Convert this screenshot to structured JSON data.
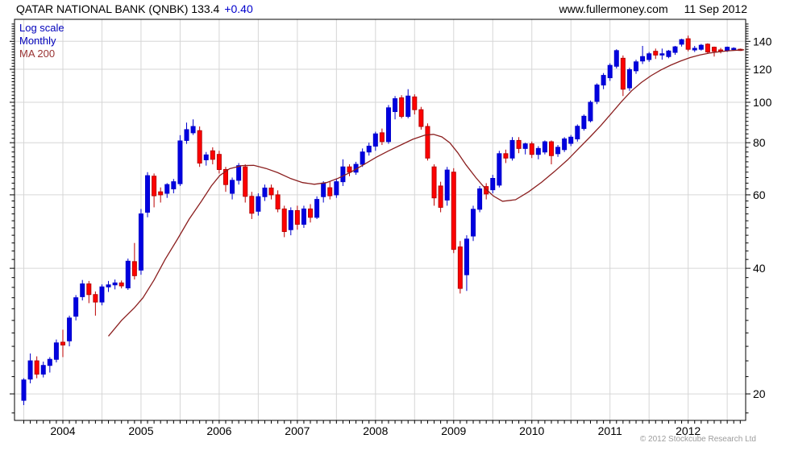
{
  "header": {
    "title": "QATAR NATIONAL BANK (QNBK) 133.4",
    "change": "+0.40",
    "site": "www.fullermoney.com",
    "date": "11 Sep 2012"
  },
  "legend": {
    "scale": "Log scale",
    "interval": "Monthly",
    "ma": "MA 200"
  },
  "footer": {
    "copyright": "© 2012 Stockcube Research Ltd"
  },
  "colors": {
    "up": "#0000e0",
    "up_edge": "#0000cc",
    "down": "#ff0000",
    "down_edge": "#bb0000",
    "ma": "#8b1f1f",
    "grid": "#d6d6d6",
    "axis": "#000000",
    "change_text": "#0000cc",
    "legend_blue": "#0000bb",
    "legend_red": "#993333",
    "copyright_gray": "#9c9c9c"
  },
  "chart_data": {
    "type": "candlestick",
    "interval": "Monthly",
    "scale": "log",
    "title": "QATAR NATIONAL BANK (QNBK)",
    "last_price": 133.4,
    "last_change": 0.4,
    "overlay": "MA 200",
    "y_ticks": [
      20,
      40,
      60,
      80,
      100,
      120,
      140
    ],
    "y_minor_tick_step": 2,
    "ylim": [
      17.3,
      155
    ],
    "x_years": [
      "2004",
      "2005",
      "2006",
      "2007",
      "2008",
      "2009",
      "2010",
      "2011",
      "2012"
    ],
    "start_month": "2003-07",
    "months": [
      [
        "2003-07",
        19.3,
        21.8,
        18.8,
        21.6
      ],
      [
        "2003-08",
        21.7,
        25.0,
        21.2,
        24.0
      ],
      [
        "2003-09",
        24.0,
        24.6,
        21.8,
        22.3
      ],
      [
        "2003-10",
        22.3,
        23.9,
        21.9,
        23.4
      ],
      [
        "2003-11",
        23.4,
        24.5,
        22.5,
        24.2
      ],
      [
        "2003-12",
        24.2,
        27.0,
        23.8,
        26.5
      ],
      [
        "2004-01",
        26.6,
        28.5,
        24.5,
        26.2
      ],
      [
        "2004-02",
        26.8,
        30.8,
        26.0,
        30.4
      ],
      [
        "2004-03",
        30.7,
        34.5,
        30.0,
        34.0
      ],
      [
        "2004-04",
        34.2,
        37.5,
        33.5,
        36.7
      ],
      [
        "2004-05",
        36.7,
        37.3,
        33.0,
        34.6
      ],
      [
        "2004-06",
        34.6,
        35.2,
        30.8,
        33.2
      ],
      [
        "2004-07",
        33.2,
        36.6,
        32.6,
        36.1
      ],
      [
        "2004-08",
        36.1,
        37.3,
        35.1,
        36.5
      ],
      [
        "2004-09",
        36.5,
        37.6,
        35.6,
        36.9
      ],
      [
        "2004-10",
        36.9,
        37.4,
        35.8,
        36.3
      ],
      [
        "2004-11",
        35.9,
        42.2,
        35.5,
        41.6
      ],
      [
        "2004-12",
        41.5,
        46.0,
        37.6,
        38.4
      ],
      [
        "2005-01",
        39.6,
        55.5,
        38.6,
        54.0
      ],
      [
        "2005-02",
        54.5,
        68.0,
        53.0,
        66.7
      ],
      [
        "2005-03",
        66.5,
        67.5,
        56.0,
        59.7
      ],
      [
        "2005-04",
        61.0,
        62.5,
        57.5,
        60.0
      ],
      [
        "2005-05",
        60.5,
        64.0,
        59.0,
        63.5
      ],
      [
        "2005-06",
        62.0,
        65.5,
        60.5,
        64.5
      ],
      [
        "2005-07",
        63.8,
        83.4,
        63.0,
        80.8
      ],
      [
        "2005-08",
        81.0,
        89.4,
        79.5,
        86.0
      ],
      [
        "2005-09",
        84.5,
        91.0,
        83.5,
        87.5
      ],
      [
        "2005-10",
        85.5,
        87.5,
        70.0,
        71.5
      ],
      [
        "2005-11",
        72.8,
        76.0,
        70.5,
        74.8
      ],
      [
        "2005-12",
        76.5,
        78.0,
        71.0,
        73.0
      ],
      [
        "2006-01",
        75.0,
        76.5,
        67.5,
        69.0
      ],
      [
        "2006-02",
        69.0,
        70.0,
        61.0,
        63.5
      ],
      [
        "2006-03",
        60.5,
        66.0,
        58.5,
        65.0
      ],
      [
        "2006-04",
        65.0,
        71.5,
        63.5,
        70.5
      ],
      [
        "2006-05",
        70.0,
        71.0,
        57.5,
        59.5
      ],
      [
        "2006-06",
        59.5,
        61.0,
        52.5,
        54.2
      ],
      [
        "2006-07",
        54.8,
        60.5,
        53.5,
        59.4
      ],
      [
        "2006-08",
        59.4,
        63.5,
        58.0,
        62.3
      ],
      [
        "2006-09",
        62.3,
        63.5,
        58.5,
        60.0
      ],
      [
        "2006-10",
        60.0,
        61.5,
        54.5,
        55.5
      ],
      [
        "2006-11",
        55.5,
        56.5,
        47.5,
        49.0
      ],
      [
        "2006-12",
        49.5,
        56.0,
        48.0,
        55.0
      ],
      [
        "2007-01",
        55.0,
        56.5,
        49.5,
        51.0
      ],
      [
        "2007-02",
        51.0,
        56.5,
        50.0,
        55.5
      ],
      [
        "2007-03",
        55.5,
        57.0,
        51.5,
        53.0
      ],
      [
        "2007-04",
        53.0,
        59.5,
        52.5,
        58.5
      ],
      [
        "2007-05",
        59.4,
        64.7,
        57.5,
        64.0
      ],
      [
        "2007-06",
        62.4,
        64.5,
        58.5,
        59.7
      ],
      [
        "2007-07",
        60.0,
        65.5,
        59.0,
        64.5
      ],
      [
        "2007-08",
        64.5,
        73.0,
        63.0,
        70.0
      ],
      [
        "2007-09",
        70.0,
        71.0,
        66.5,
        68.0
      ],
      [
        "2007-10",
        68.0,
        72.0,
        67.0,
        71.0
      ],
      [
        "2007-11",
        71.0,
        77.5,
        70.0,
        76.0
      ],
      [
        "2007-12",
        76.0,
        80.0,
        74.5,
        78.5
      ],
      [
        "2008-01",
        78.5,
        85.0,
        76.5,
        84.0
      ],
      [
        "2008-02",
        84.5,
        86.5,
        79.0,
        80.5
      ],
      [
        "2008-03",
        80.5,
        98.5,
        79.5,
        97.0
      ],
      [
        "2008-04",
        95.0,
        103.5,
        91.0,
        102.0
      ],
      [
        "2008-05",
        102.5,
        104.0,
        91.5,
        92.5
      ],
      [
        "2008-06",
        92.5,
        107.5,
        91.5,
        103.5
      ],
      [
        "2008-07",
        103.0,
        104.5,
        93.5,
        96.0
      ],
      [
        "2008-08",
        96.0,
        97.5,
        86.0,
        87.5
      ],
      [
        "2008-09",
        87.5,
        89.0,
        72.5,
        73.5
      ],
      [
        "2008-10",
        70.0,
        71.0,
        56.5,
        59.0
      ],
      [
        "2008-11",
        63.0,
        64.5,
        54.5,
        56.0
      ],
      [
        "2008-12",
        58.3,
        70.0,
        56.5,
        68.8
      ],
      [
        "2009-01",
        68.0,
        69.5,
        43.5,
        44.4
      ],
      [
        "2009-02",
        45.0,
        46.5,
        34.8,
        35.8
      ],
      [
        "2009-03",
        38.6,
        48.0,
        35.3,
        47.0
      ],
      [
        "2009-04",
        47.8,
        56.5,
        46.5,
        55.4
      ],
      [
        "2009-05",
        55.4,
        63.0,
        54.5,
        62.0
      ],
      [
        "2009-06",
        62.8,
        64.0,
        58.5,
        60.3
      ],
      [
        "2009-07",
        61.7,
        67.0,
        60.5,
        65.7
      ],
      [
        "2009-08",
        63.3,
        76.5,
        62.5,
        75.3
      ],
      [
        "2009-09",
        75.3,
        77.0,
        71.5,
        73.5
      ],
      [
        "2009-10",
        73.5,
        82.5,
        72.5,
        81.0
      ],
      [
        "2009-11",
        81.0,
        82.5,
        75.5,
        77.5
      ],
      [
        "2009-12",
        77.5,
        80.0,
        75.0,
        79.5
      ],
      [
        "2010-01",
        79.5,
        80.5,
        73.5,
        75.0
      ],
      [
        "2010-02",
        75.0,
        78.5,
        73.0,
        77.5
      ],
      [
        "2010-03",
        76.0,
        81.0,
        75.0,
        80.4
      ],
      [
        "2010-04",
        80.4,
        81.0,
        71.0,
        74.5
      ],
      [
        "2010-05",
        75.3,
        79.0,
        74.0,
        78.0
      ],
      [
        "2010-06",
        77.0,
        82.5,
        76.0,
        81.7
      ],
      [
        "2010-07",
        79.7,
        83.5,
        78.5,
        82.5
      ],
      [
        "2010-08",
        81.7,
        88.5,
        80.5,
        87.6
      ],
      [
        "2010-09",
        86.5,
        93.5,
        85.5,
        92.6
      ],
      [
        "2010-10",
        90.3,
        101.0,
        89.5,
        100.0
      ],
      [
        "2010-11",
        100.5,
        111.0,
        99.0,
        110.0
      ],
      [
        "2010-12",
        110.0,
        117.5,
        107.5,
        116.0
      ],
      [
        "2011-01",
        114.5,
        124.0,
        112.5,
        122.6
      ],
      [
        "2011-02",
        122.0,
        134.0,
        120.5,
        133.0
      ],
      [
        "2011-03",
        127.5,
        129.5,
        103.5,
        107.5
      ],
      [
        "2011-04",
        108.3,
        121.0,
        106.5,
        119.7
      ],
      [
        "2011-05",
        119.0,
        126.5,
        117.0,
        125.0
      ],
      [
        "2011-06",
        125.6,
        136.5,
        123.5,
        128.7
      ],
      [
        "2011-07",
        126.6,
        132.0,
        125.0,
        130.7
      ],
      [
        "2011-08",
        132.5,
        134.5,
        127.0,
        129.8
      ],
      [
        "2011-09",
        129.8,
        134.5,
        126.5,
        130.7
      ],
      [
        "2011-10",
        128.7,
        133.5,
        127.5,
        132.7
      ],
      [
        "2011-11",
        131.7,
        136.5,
        130.0,
        135.8
      ],
      [
        "2011-12",
        137.8,
        142.0,
        136.0,
        141.3
      ],
      [
        "2012-01",
        142.0,
        144.5,
        132.5,
        134.0
      ],
      [
        "2012-02",
        133.5,
        136.5,
        132.0,
        134.7
      ],
      [
        "2012-03",
        134.0,
        138.0,
        133.0,
        137.0
      ],
      [
        "2012-04",
        137.8,
        138.5,
        131.0,
        132.0
      ],
      [
        "2012-05",
        135.5,
        136.0,
        128.7,
        132.5
      ],
      [
        "2012-06",
        133.5,
        135.0,
        131.0,
        133.0
      ],
      [
        "2012-07",
        133.0,
        136.0,
        132.0,
        135.5
      ],
      [
        "2012-08",
        134.5,
        135.5,
        133.0,
        134.7
      ],
      [
        "2012-09",
        134.0,
        134.5,
        132.8,
        133.4
      ]
    ],
    "ma200": [
      [
        13,
        27.5
      ],
      [
        15,
        30
      ],
      [
        17,
        32.2
      ],
      [
        18.3,
        34
      ],
      [
        20,
        37.5
      ],
      [
        21.7,
        42
      ],
      [
        23.6,
        47
      ],
      [
        25.4,
        52.5
      ],
      [
        27.3,
        58
      ],
      [
        28.8,
        63
      ],
      [
        30.1,
        66.8
      ],
      [
        31.6,
        69.3
      ],
      [
        33.5,
        70.5
      ],
      [
        35.3,
        70.6
      ],
      [
        37.2,
        69.4
      ],
      [
        39,
        67.8
      ],
      [
        41,
        65.6
      ],
      [
        42.8,
        64.2
      ],
      [
        44.6,
        63.6
      ],
      [
        46.5,
        64.2
      ],
      [
        48.3,
        65.8
      ],
      [
        50.2,
        68
      ],
      [
        52,
        70.6
      ],
      [
        54.1,
        73.8
      ],
      [
        56,
        76.5
      ],
      [
        57.9,
        79
      ],
      [
        59.7,
        81.5
      ],
      [
        61.6,
        83.4
      ],
      [
        62.9,
        83.8
      ],
      [
        64.2,
        82.6
      ],
      [
        65.4,
        80
      ],
      [
        66.6,
        75.8
      ],
      [
        67.9,
        70.8
      ],
      [
        69.4,
        66
      ],
      [
        70.9,
        62
      ],
      [
        72.1,
        59.6
      ],
      [
        73.5,
        57.9
      ],
      [
        75.5,
        58.4
      ],
      [
        77.5,
        61
      ],
      [
        79.5,
        64.3
      ],
      [
        81.5,
        68.3
      ],
      [
        83.5,
        72.8
      ],
      [
        85.2,
        77.5
      ],
      [
        87,
        82.8
      ],
      [
        88.6,
        88
      ],
      [
        90.2,
        94
      ],
      [
        91.8,
        100.5
      ],
      [
        93.3,
        106.5
      ],
      [
        94.8,
        111.5
      ],
      [
        96.3,
        115.8
      ],
      [
        97.8,
        119.5
      ],
      [
        99.3,
        122.7
      ],
      [
        100.8,
        125.5
      ],
      [
        102.3,
        128
      ],
      [
        103.8,
        129.9
      ],
      [
        105.3,
        131.2
      ],
      [
        106.8,
        132.2
      ],
      [
        108.3,
        132.9
      ],
      [
        109.5,
        133.3
      ],
      [
        110.6,
        133.6
      ]
    ]
  }
}
